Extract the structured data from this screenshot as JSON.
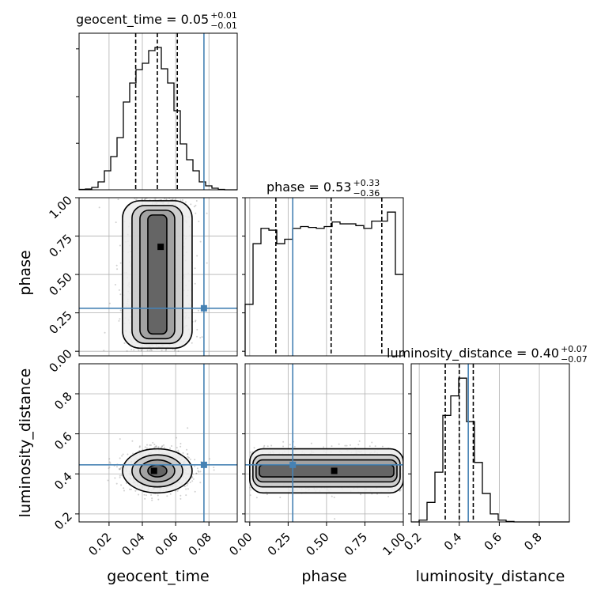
{
  "chart_data": {
    "type": "corner",
    "parameters": [
      "geocent_time",
      "phase",
      "luminosity_distance"
    ],
    "grid": true,
    "colors": {
      "truth": "#4682b4",
      "hist": "#000000",
      "density": "#808080",
      "grid": "#b0b0b0"
    },
    "axes": [
      {
        "name": "geocent_time",
        "xlabel": "geocent_time",
        "range": [
          0.002,
          0.097
        ],
        "ticks": [
          0.02,
          0.04,
          0.06,
          0.08
        ],
        "tick_labels": [
          "0.02",
          "0.04",
          "0.06",
          "0.08"
        ]
      },
      {
        "name": "phase",
        "xlabel": "phase",
        "ylabel": "phase",
        "range": [
          -0.03,
          1.0
        ],
        "ticks": [
          0.0,
          0.25,
          0.5,
          0.75,
          1.0
        ],
        "tick_labels": [
          "0.00",
          "0.25",
          "0.50",
          "0.75",
          "1.00"
        ]
      },
      {
        "name": "luminosity_distance",
        "xlabel": "luminosity_distance",
        "ylabel": "luminosity_distance",
        "range": [
          0.16,
          0.95
        ],
        "ticks": [
          0.2,
          0.4,
          0.6,
          0.8
        ],
        "tick_labels": [
          "0.2",
          "0.4",
          "0.6",
          "0.8"
        ]
      }
    ],
    "truths": {
      "geocent_time": 0.077,
      "phase": 0.28,
      "luminosity_distance": 0.445
    },
    "titles": [
      {
        "param": "geocent_time",
        "text": "geocent_time = 0.05",
        "plus": "+0.01",
        "minus": "−0.01"
      },
      {
        "param": "phase",
        "text": "phase = 0.53",
        "plus": "+0.33",
        "minus": "−0.36"
      },
      {
        "param": "luminosity_distance",
        "text": "luminosity_distance = 0.40",
        "plus": "+0.07",
        "minus": "−0.07"
      }
    ],
    "histograms": [
      {
        "param": "geocent_time",
        "edges": [
          0.002,
          0.0058,
          0.0096,
          0.0134,
          0.0172,
          0.021,
          0.0248,
          0.0286,
          0.0324,
          0.0362,
          0.04,
          0.0438,
          0.0476,
          0.0514,
          0.0552,
          0.059,
          0.0628,
          0.0666,
          0.0704,
          0.0742,
          0.078,
          0.0818,
          0.0856,
          0.0894,
          0.0932,
          0.097
        ],
        "counts": [
          0.5,
          1,
          3,
          10,
          24,
          42,
          66,
          111,
          135,
          152,
          160,
          176,
          180,
          153,
          135,
          100,
          58,
          38,
          24,
          10,
          5,
          2,
          0.5,
          0,
          0
        ],
        "quantiles": [
          0.036,
          0.049,
          0.061
        ]
      },
      {
        "param": "phase",
        "edges": [
          -0.03,
          0.0215,
          0.073,
          0.1245,
          0.176,
          0.2275,
          0.279,
          0.3305,
          0.382,
          0.4335,
          0.485,
          0.5365,
          0.588,
          0.6395,
          0.691,
          0.7425,
          0.794,
          0.8455,
          0.897,
          0.9485,
          1.0
        ],
        "counts": [
          57,
          124,
          141,
          139,
          124,
          129,
          141,
          143,
          142,
          141,
          143,
          148,
          146,
          146,
          144,
          141,
          149,
          149,
          159,
          90
        ],
        "quantiles": [
          0.17,
          0.53,
          0.86
        ]
      },
      {
        "param": "luminosity_distance",
        "edges": [
          0.16,
          0.1995,
          0.239,
          0.2785,
          0.318,
          0.3575,
          0.397,
          0.4365,
          0.476,
          0.5155,
          0.555,
          0.5945,
          0.634,
          0.6735,
          0.713,
          0.7525,
          0.792,
          0.8315,
          0.871,
          0.9105,
          0.95
        ],
        "counts": [
          0,
          2,
          22,
          56,
          120,
          142,
          162,
          113,
          67,
          32,
          9,
          2,
          0.5,
          0,
          0,
          0,
          0,
          0,
          0,
          0
        ],
        "quantiles": [
          0.33,
          0.4,
          0.47
        ]
      }
    ],
    "joint": [
      {
        "x": "geocent_time",
        "y": "phase",
        "center": [
          0.049,
          0.48
        ],
        "sigma": [
          0.0095,
          0.28
        ],
        "mode": [
          0.051,
          0.68
        ]
      },
      {
        "x": "geocent_time",
        "y": "luminosity_distance",
        "center": [
          0.049,
          0.415
        ],
        "sigma": [
          0.0095,
          0.05
        ],
        "mode": [
          0.047,
          0.415
        ]
      },
      {
        "x": "phase",
        "y": "luminosity_distance",
        "center": [
          0.5,
          0.415
        ],
        "sigma": [
          0.3,
          0.05
        ],
        "mode": [
          0.55,
          0.415
        ]
      }
    ]
  }
}
